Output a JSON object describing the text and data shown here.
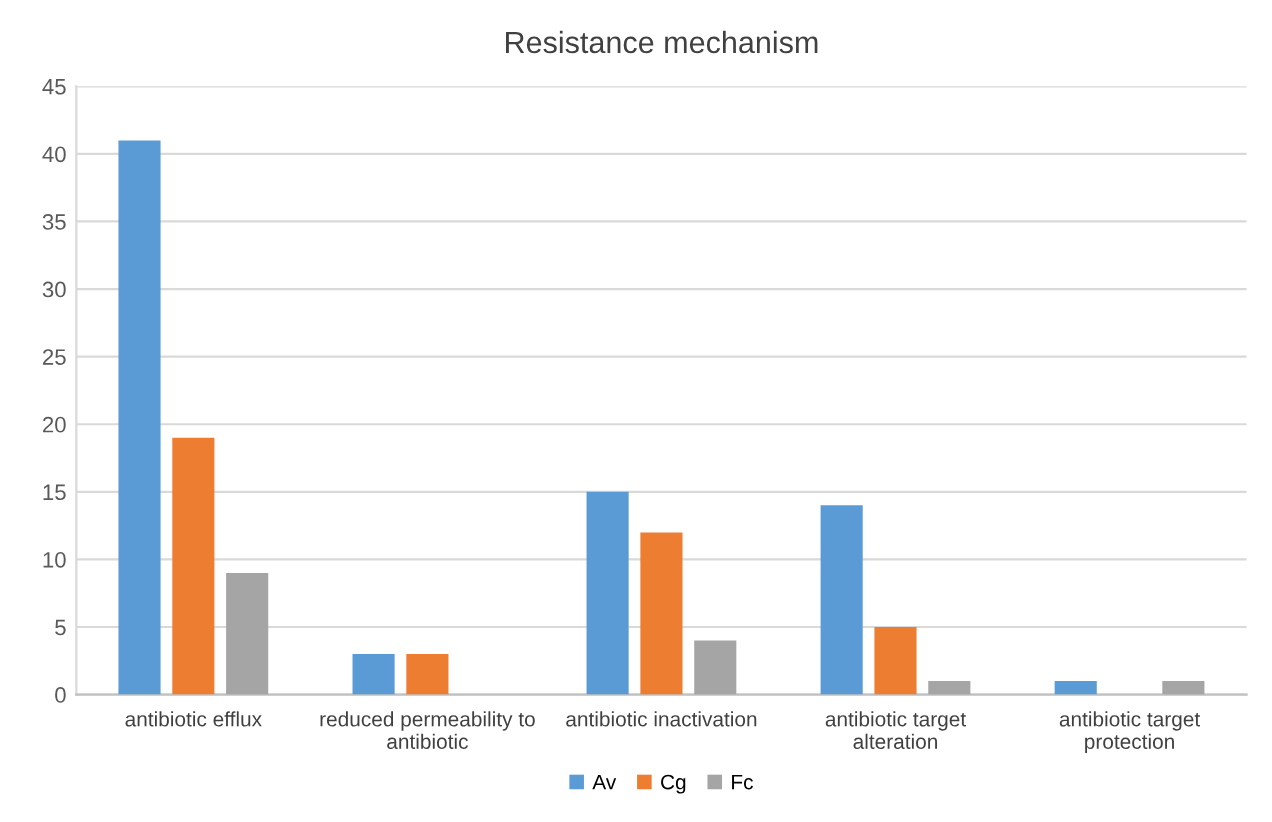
{
  "chart_data": {
    "type": "bar",
    "title": "Resistance mechanism",
    "categories": [
      "antibiotic efflux",
      "reduced permeability to\nantibiotic",
      "antibiotic inactivation",
      "antibiotic target\nalteration",
      "antibiotic target\nprotection"
    ],
    "series": [
      {
        "name": "Av",
        "color": "#5b9bd5",
        "values": [
          41,
          3,
          15,
          14,
          1
        ]
      },
      {
        "name": "Cg",
        "color": "#ed7d31",
        "values": [
          19,
          3,
          12,
          5,
          0
        ]
      },
      {
        "name": "Fc",
        "color": "#a5a5a5",
        "values": [
          9,
          0,
          4,
          1,
          1
        ]
      }
    ],
    "ylim": [
      0,
      45
    ],
    "yticks": [
      0,
      5,
      10,
      15,
      20,
      25,
      30,
      35,
      40,
      45
    ],
    "grid": "y",
    "legend": "bottom"
  }
}
